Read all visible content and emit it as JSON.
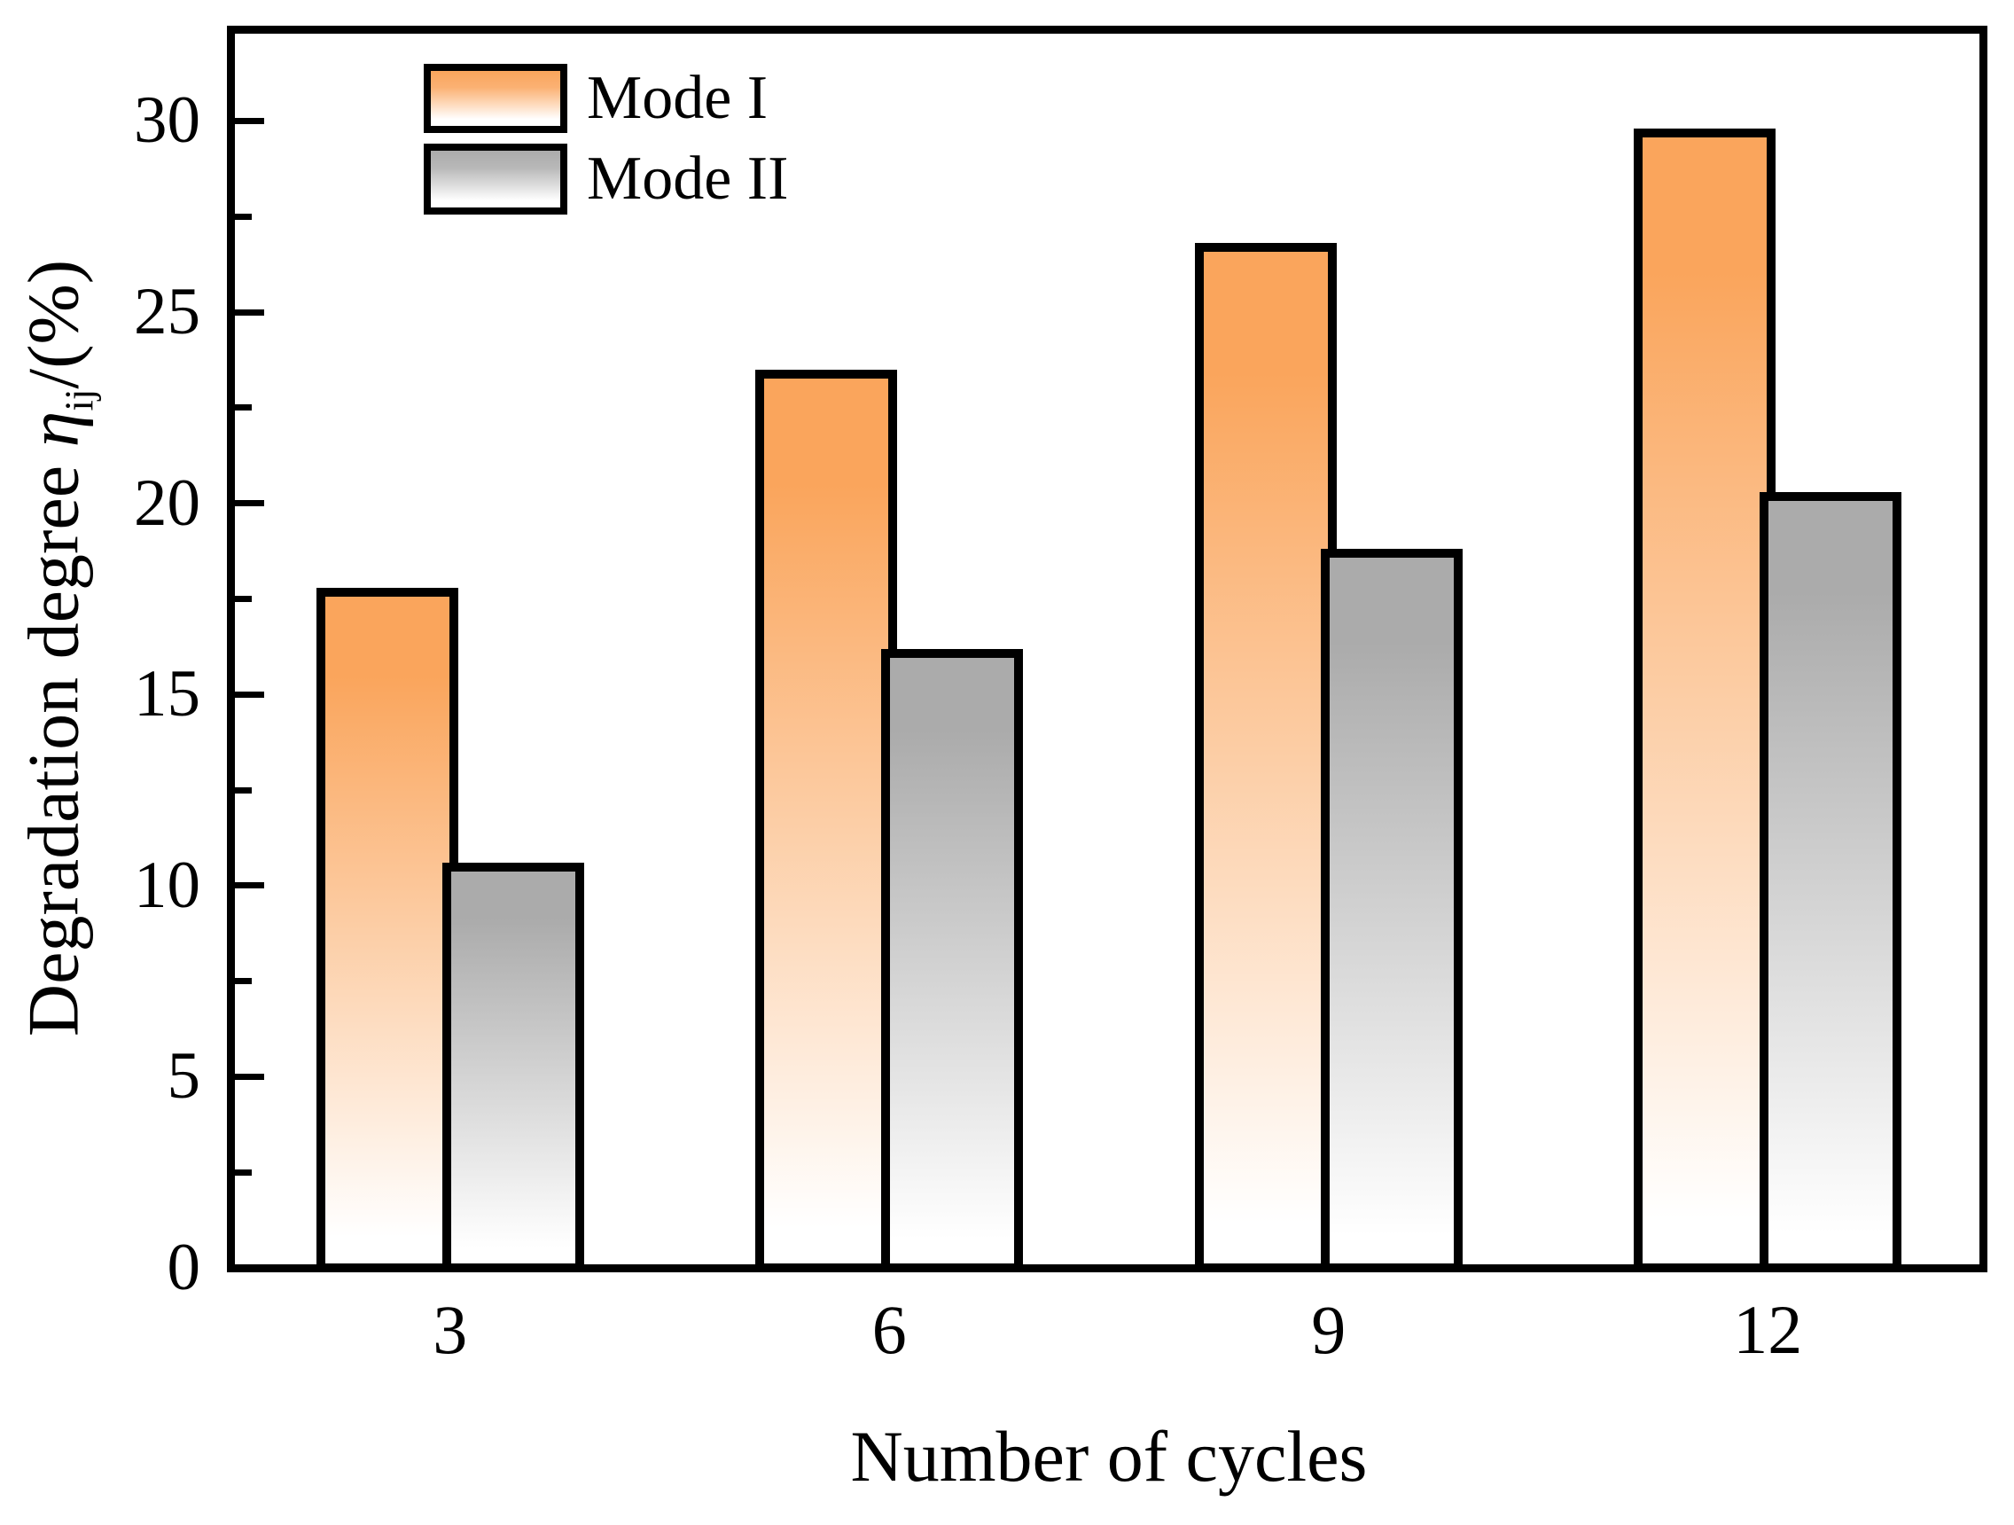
{
  "chart_data": {
    "type": "bar",
    "title": "",
    "xlabel": "Number of cycles",
    "ylabel": {
      "prefix": "Degradation degree ",
      "symbol": "η",
      "subscript": "ij",
      "suffix": "/(%)"
    },
    "categories": [
      "3",
      "6",
      "9",
      "12"
    ],
    "series": [
      {
        "name": "Mode I",
        "values": [
          17.8,
          23.5,
          26.8,
          29.8
        ],
        "color": "#faa55c"
      },
      {
        "name": "Mode II",
        "values": [
          10.6,
          16.2,
          18.8,
          20.3
        ],
        "color": "#ababab"
      }
    ],
    "ylim": [
      0,
      32.4
    ],
    "yticks_major": [
      0,
      5,
      10,
      15,
      20,
      25,
      30
    ],
    "yticks_minor": [
      2.5,
      7.5,
      12.5,
      17.5,
      22.5,
      27.5
    ],
    "bar_fill_fade_to": "#ffffff",
    "bar_edge_color": "#000000",
    "grid": false,
    "legend_position": "upper-left-inside"
  }
}
